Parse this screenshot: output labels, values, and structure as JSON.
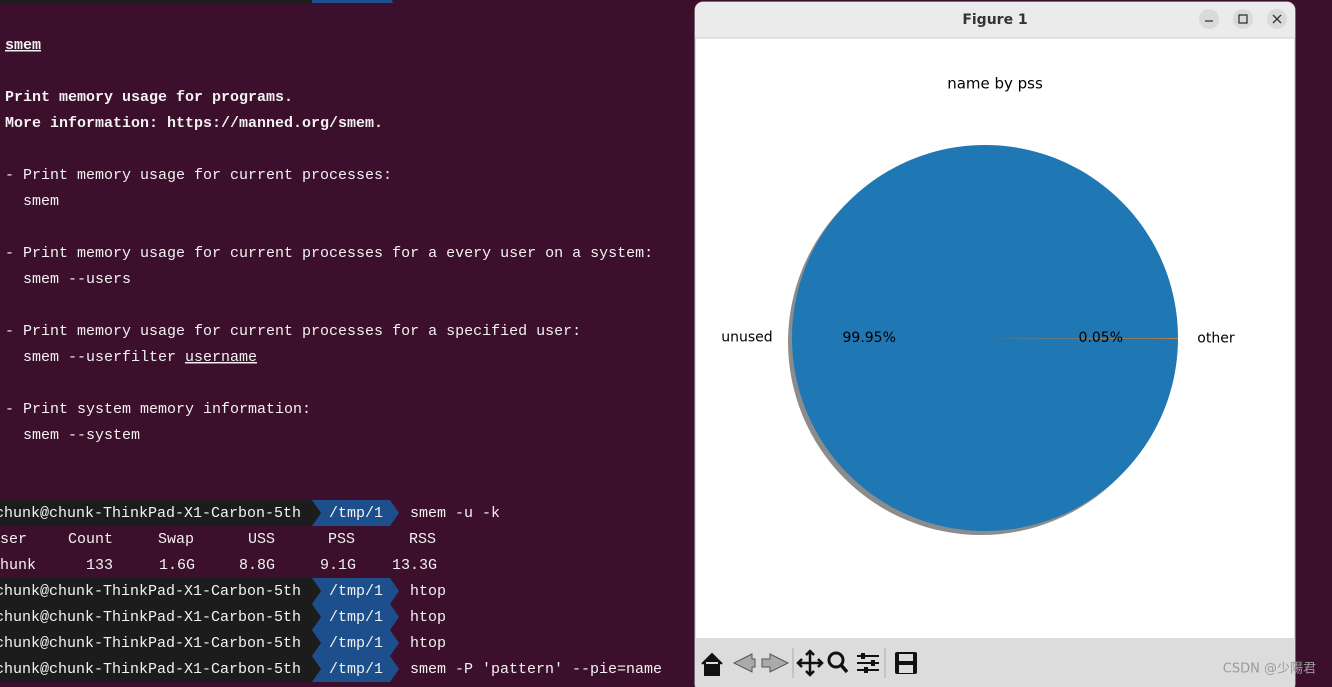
{
  "terminal": {
    "heading": "smem",
    "description": [
      "Print memory usage for programs.",
      "More information: https://manned.org/smem."
    ],
    "examples": [
      {
        "desc": "- Print memory usage for current processes:",
        "cmd": "smem"
      },
      {
        "desc": "- Print memory usage for current processes for a every user on a system:",
        "cmd": "smem --users"
      },
      {
        "desc": "- Print memory usage for current processes for a specified user:",
        "cmd": "smem --userfilter",
        "arg": "username"
      },
      {
        "desc": "- Print system memory information:",
        "cmd": "smem --system"
      }
    ],
    "prompts": [
      {
        "host": "chunk@chunk-ThinkPad-X1-Carbon-5th",
        "dir": "/tmp/1",
        "cmd": "smem",
        "args": "-u -k"
      },
      {
        "host": "chunk@chunk-ThinkPad-X1-Carbon-5th",
        "dir": "/tmp/1",
        "cmd": "htop"
      },
      {
        "host": "chunk@chunk-ThinkPad-X1-Carbon-5th",
        "dir": "/tmp/1",
        "cmd": "htop"
      },
      {
        "host": "chunk@chunk-ThinkPad-X1-Carbon-5th",
        "dir": "/tmp/1",
        "cmd": "htop"
      },
      {
        "host": "chunk@chunk-ThinkPad-X1-Carbon-5th",
        "dir": "/tmp/1",
        "cmd": "smem",
        "args": "-P",
        "quoted": "'pattern'",
        "rest": "--pie=name"
      }
    ],
    "table": {
      "header": [
        "ser",
        "Count",
        "Swap",
        "USS",
        "PSS",
        "RSS"
      ],
      "rows": [
        [
          "hunk",
          "133",
          "1.6G",
          "8.8G",
          "9.1G",
          "13.3G"
        ]
      ]
    }
  },
  "window": {
    "title": "Figure 1"
  },
  "chart_data": {
    "type": "pie",
    "title": "name by pss",
    "categories": [
      "unused",
      "other"
    ],
    "values": [
      99.95,
      0.05
    ],
    "value_labels": [
      "99.95%",
      "0.05%"
    ],
    "colors": [
      "#1f77b4",
      "#ff7f0e"
    ],
    "shadow": true
  },
  "watermark": "CSDN @少陽君"
}
